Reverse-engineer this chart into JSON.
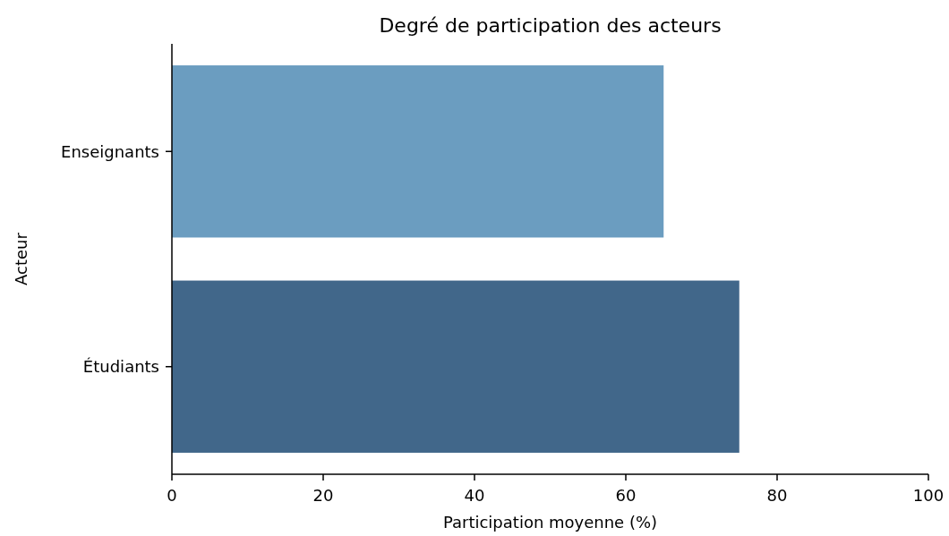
{
  "chart_data": {
    "type": "bar",
    "orientation": "horizontal",
    "title": "Degré de participation des acteurs",
    "xlabel": "Participation moyenne (%)",
    "ylabel": "Acteur",
    "categories": [
      "Enseignants",
      "Étudiants"
    ],
    "values": [
      65,
      75
    ],
    "colors": [
      "#6b9dc0",
      "#41678a"
    ],
    "xlim": [
      0,
      100
    ],
    "xticks": [
      0,
      20,
      40,
      60,
      80,
      100
    ],
    "grid": false
  }
}
